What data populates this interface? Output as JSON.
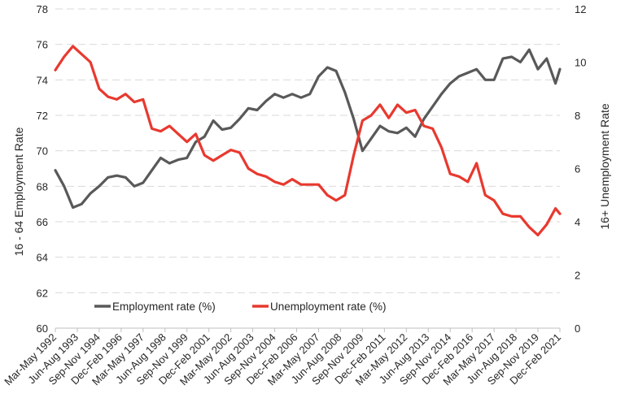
{
  "chart_data": {
    "type": "line",
    "ylabel_left": "16 - 64 Employment Rate",
    "ylabel_right": "16+ Unemployment Rate",
    "ylim_left": [
      60,
      78
    ],
    "ylim_right": [
      0,
      12
    ],
    "yticks_left": [
      "60",
      "62",
      "64",
      "66",
      "68",
      "70",
      "72",
      "74",
      "76",
      "78"
    ],
    "yticks_right": [
      "0",
      "2",
      "4",
      "6",
      "8",
      "10",
      "12"
    ],
    "x_tick_labels": [
      "Mar-May 1992",
      "Jun-Aug 1993",
      "Sep-Nov 1994",
      "Dec-Feb 1996",
      "Mar-May 1997",
      "Jun-Aug 1998",
      "Sep-Nov 1999",
      "Dec-Feb 2001",
      "Mar-May 2002",
      "Jun-Aug 2003",
      "Sep-Nov 2004",
      "Dec-Feb 2006",
      "Mar-May 2007",
      "Jun-Aug 2008",
      "Sep-Nov 2009",
      "Dec-Feb 2011",
      "Mar-May 2012",
      "Jun-Aug 2013",
      "Sep-Nov 2014",
      "Dec-Feb 2016",
      "Mar-May 2017",
      "Jun-Aug 2018",
      "Sep-Nov 2019",
      "Dec-Feb 2021"
    ],
    "grid": "horizontal dashed",
    "legend_placement": "bottom-left",
    "series": [
      {
        "name": "Employment rate (%)",
        "axis": "left",
        "color": "#595959",
        "points": [
          [
            "Mar-May 1992",
            68.9
          ],
          [
            "Sep-Nov 1992",
            68.0
          ],
          [
            "Mar-May 1993",
            66.8
          ],
          [
            "Sep-Nov 1993",
            67.0
          ],
          [
            "Mar-May 1994",
            67.6
          ],
          [
            "Sep-Nov 1994",
            68.0
          ],
          [
            "Mar-May 1995",
            68.5
          ],
          [
            "Sep-Nov 1995",
            68.6
          ],
          [
            "Mar-May 1996",
            68.5
          ],
          [
            "Sep-Nov 1996",
            68.0
          ],
          [
            "Mar-May 1997",
            68.2
          ],
          [
            "Sep-Nov 1997",
            68.9
          ],
          [
            "Mar-May 1998",
            69.6
          ],
          [
            "Sep-Nov 1998",
            69.3
          ],
          [
            "Mar-May 1999",
            69.5
          ],
          [
            "Sep-Nov 1999",
            69.6
          ],
          [
            "Mar-May 2000",
            70.5
          ],
          [
            "Sep-Nov 2000",
            70.8
          ],
          [
            "Mar-May 2001",
            71.7
          ],
          [
            "Sep-Nov 2001",
            71.2
          ],
          [
            "Mar-May 2002",
            71.3
          ],
          [
            "Sep-Nov 2002",
            71.8
          ],
          [
            "Mar-May 2003",
            72.4
          ],
          [
            "Sep-Nov 2003",
            72.3
          ],
          [
            "Mar-May 2004",
            72.8
          ],
          [
            "Sep-Nov 2004",
            73.2
          ],
          [
            "Mar-May 2005",
            73.0
          ],
          [
            "Sep-Nov 2005",
            73.2
          ],
          [
            "Mar-May 2006",
            73.0
          ],
          [
            "Sep-Nov 2006",
            73.2
          ],
          [
            "Mar-May 2007",
            74.2
          ],
          [
            "Sep-Nov 2007",
            74.7
          ],
          [
            "Mar-May 2008",
            74.5
          ],
          [
            "Sep-Nov 2008",
            73.3
          ],
          [
            "Mar-May 2009",
            71.8
          ],
          [
            "Sep-Nov 2009",
            70.0
          ],
          [
            "Mar-May 2010",
            70.7
          ],
          [
            "Sep-Nov 2010",
            71.4
          ],
          [
            "Mar-May 2011",
            71.1
          ],
          [
            "Sep-Nov 2011",
            71.0
          ],
          [
            "Mar-May 2012",
            71.3
          ],
          [
            "Sep-Nov 2012",
            70.8
          ],
          [
            "Mar-May 2013",
            71.8
          ],
          [
            "Sep-Nov 2013",
            72.5
          ],
          [
            "Mar-May 2014",
            73.2
          ],
          [
            "Sep-Nov 2014",
            73.8
          ],
          [
            "Mar-May 2015",
            74.2
          ],
          [
            "Sep-Nov 2015",
            74.4
          ],
          [
            "Mar-May 2016",
            74.6
          ],
          [
            "Sep-Nov 2016",
            74.0
          ],
          [
            "Mar-May 2017",
            74.0
          ],
          [
            "Sep-Nov 2017",
            75.2
          ],
          [
            "Mar-May 2018",
            75.3
          ],
          [
            "Sep-Nov 2018",
            75.0
          ],
          [
            "Mar-May 2019",
            75.7
          ],
          [
            "Sep-Nov 2019",
            74.6
          ],
          [
            "Mar-May 2020",
            75.2
          ],
          [
            "Sep-Nov 2020",
            73.8
          ],
          [
            "Dec-Feb 2021",
            74.6
          ]
        ]
      },
      {
        "name": "Unemployment rate (%)",
        "axis": "right",
        "color": "#e8392f",
        "points": [
          [
            "Mar-May 1992",
            9.7
          ],
          [
            "Sep-Nov 1992",
            10.2
          ],
          [
            "Mar-May 1993",
            10.6
          ],
          [
            "Sep-Nov 1993",
            10.3
          ],
          [
            "Mar-May 1994",
            10.0
          ],
          [
            "Sep-Nov 1994",
            9.0
          ],
          [
            "Mar-May 1995",
            8.7
          ],
          [
            "Sep-Nov 1995",
            8.6
          ],
          [
            "Mar-May 1996",
            8.8
          ],
          [
            "Sep-Nov 1996",
            8.5
          ],
          [
            "Mar-May 1997",
            8.6
          ],
          [
            "Sep-Nov 1997",
            7.5
          ],
          [
            "Mar-May 1998",
            7.4
          ],
          [
            "Sep-Nov 1998",
            7.6
          ],
          [
            "Mar-May 1999",
            7.3
          ],
          [
            "Sep-Nov 1999",
            7.0
          ],
          [
            "Mar-May 2000",
            7.3
          ],
          [
            "Sep-Nov 2000",
            6.5
          ],
          [
            "Mar-May 2001",
            6.3
          ],
          [
            "Sep-Nov 2001",
            6.5
          ],
          [
            "Mar-May 2002",
            6.7
          ],
          [
            "Sep-Nov 2002",
            6.6
          ],
          [
            "Mar-May 2003",
            6.0
          ],
          [
            "Sep-Nov 2003",
            5.8
          ],
          [
            "Mar-May 2004",
            5.7
          ],
          [
            "Sep-Nov 2004",
            5.5
          ],
          [
            "Mar-May 2005",
            5.4
          ],
          [
            "Sep-Nov 2005",
            5.6
          ],
          [
            "Mar-May 2006",
            5.4
          ],
          [
            "Sep-Nov 2006",
            5.4
          ],
          [
            "Mar-May 2007",
            5.4
          ],
          [
            "Sep-Nov 2007",
            5.0
          ],
          [
            "Mar-May 2008",
            4.8
          ],
          [
            "Sep-Nov 2008",
            5.0
          ],
          [
            "Mar-May 2009",
            6.5
          ],
          [
            "Sep-Nov 2009",
            7.8
          ],
          [
            "Mar-May 2010",
            8.0
          ],
          [
            "Sep-Nov 2010",
            8.4
          ],
          [
            "Mar-May 2011",
            7.9
          ],
          [
            "Sep-Nov 2011",
            8.4
          ],
          [
            "Mar-May 2012",
            8.1
          ],
          [
            "Sep-Nov 2012",
            8.2
          ],
          [
            "Mar-May 2013",
            7.6
          ],
          [
            "Sep-Nov 2013",
            7.5
          ],
          [
            "Mar-May 2014",
            6.8
          ],
          [
            "Sep-Nov 2014",
            5.8
          ],
          [
            "Mar-May 2015",
            5.7
          ],
          [
            "Sep-Nov 2015",
            5.5
          ],
          [
            "Mar-May 2016",
            6.2
          ],
          [
            "Sep-Nov 2016",
            5.0
          ],
          [
            "Mar-May 2017",
            4.8
          ],
          [
            "Sep-Nov 2017",
            4.3
          ],
          [
            "Mar-May 2018",
            4.2
          ],
          [
            "Sep-Nov 2018",
            4.2
          ],
          [
            "Mar-May 2019",
            3.8
          ],
          [
            "Sep-Nov 2019",
            3.5
          ],
          [
            "Mar-May 2020",
            3.9
          ],
          [
            "Sep-Nov 2020",
            4.5
          ],
          [
            "Dec-Feb 2021",
            4.3
          ]
        ]
      }
    ]
  }
}
